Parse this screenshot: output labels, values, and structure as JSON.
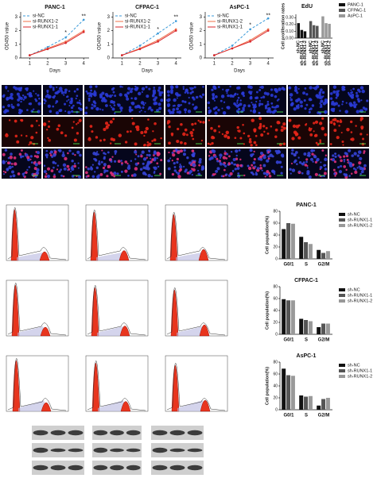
{
  "chart_data": [
    {
      "type": "line",
      "title": "PANC-1",
      "x_label": "Days",
      "y_label": "OD450 value",
      "x": [
        1,
        2,
        3,
        4
      ],
      "xlim": [
        0.5,
        4.3
      ],
      "xticks": [
        1,
        2,
        3,
        4
      ],
      "ylim": [
        0,
        3.2
      ],
      "yticks": [
        0,
        1,
        2,
        3
      ],
      "legend": "upper left",
      "series": [
        {
          "name": "si-NC",
          "color": "#3a9ad9",
          "line_style": "dashed",
          "values": [
            0.2,
            0.8,
            1.5,
            2.8
          ]
        },
        {
          "name": "si-RUNX1-2",
          "color": "#f0704a",
          "line_style": "solid",
          "values": [
            0.2,
            0.7,
            1.2,
            2.0
          ]
        },
        {
          "name": "si-RUNX1-1",
          "color": "#d9262b",
          "line_style": "solid",
          "values": [
            0.2,
            0.65,
            1.1,
            1.9
          ]
        }
      ],
      "annotations": [
        {
          "text": "*",
          "x": 3,
          "y": 1.85
        },
        {
          "text": "**",
          "x": 4,
          "y": 3.05
        }
      ]
    },
    {
      "type": "line",
      "title": "CFPAC-1",
      "x_label": "Days",
      "y_label": "OD450 value",
      "x": [
        1,
        2,
        3,
        4
      ],
      "xlim": [
        0.5,
        4.3
      ],
      "xticks": [
        1,
        2,
        3,
        4
      ],
      "ylim": [
        0,
        3.2
      ],
      "yticks": [
        0,
        1,
        2,
        3
      ],
      "legend": "upper left",
      "series": [
        {
          "name": "si-NC",
          "color": "#3a9ad9",
          "line_style": "dashed",
          "values": [
            0.2,
            0.9,
            1.8,
            2.7
          ]
        },
        {
          "name": "si-RUNX1-2",
          "color": "#f0704a",
          "line_style": "solid",
          "values": [
            0.2,
            0.7,
            1.3,
            2.1
          ]
        },
        {
          "name": "si-RUNX1-1",
          "color": "#d9262b",
          "line_style": "solid",
          "values": [
            0.2,
            0.65,
            1.2,
            2.0
          ]
        }
      ],
      "annotations": [
        {
          "text": "*",
          "x": 3,
          "y": 2.1
        },
        {
          "text": "**",
          "x": 4,
          "y": 3.0
        }
      ]
    },
    {
      "type": "line",
      "title": "AsPC-1",
      "x_label": "Days",
      "y_label": "OD450 value",
      "x": [
        1,
        2,
        3,
        4
      ],
      "xlim": [
        0.5,
        4.3
      ],
      "xticks": [
        1,
        2,
        3,
        4
      ],
      "ylim": [
        0,
        3.2
      ],
      "yticks": [
        0,
        1,
        2,
        3
      ],
      "legend": "upper left",
      "series": [
        {
          "name": "si-NC",
          "color": "#3a9ad9",
          "line_style": "dashed",
          "values": [
            0.2,
            0.9,
            2.1,
            2.9
          ]
        },
        {
          "name": "si-RUNX1-2",
          "color": "#f0704a",
          "line_style": "solid",
          "values": [
            0.2,
            0.7,
            1.3,
            2.1
          ]
        },
        {
          "name": "si-RUNX1-1",
          "color": "#d9262b",
          "line_style": "solid",
          "values": [
            0.2,
            0.7,
            1.2,
            2.0
          ]
        }
      ],
      "annotations": [
        {
          "text": "*",
          "x": 3,
          "y": 2.4
        },
        {
          "text": "**",
          "x": 4,
          "y": 3.1
        }
      ]
    },
    {
      "type": "bar",
      "title": "EdU",
      "y_label": "Cell proliferation rates",
      "cluster": "series",
      "legend": "right",
      "categories": [
        "sh-NC",
        "sh-RUNX1-1",
        "sh-RUNX1-2"
      ],
      "ylim": [
        0,
        0.35
      ],
      "yticks": [
        {
          "value": 0,
          "label": "0.00"
        },
        {
          "value": 0.1,
          "label": "0.10"
        },
        {
          "value": 0.2,
          "label": "0.20"
        },
        {
          "value": 0.3,
          "label": "0.30"
        }
      ],
      "series": [
        {
          "name": "PANC-1",
          "color": "#111111",
          "values": [
            0.22,
            0.12,
            0.1
          ]
        },
        {
          "name": "CFPAC-1",
          "color": "#555555",
          "values": [
            0.25,
            0.19,
            0.18
          ]
        },
        {
          "name": "AsPC-1",
          "color": "#999999",
          "values": [
            0.32,
            0.22,
            0.21
          ]
        }
      ]
    },
    {
      "type": "bar",
      "title": "PANC-1",
      "y_label": "Cell population(%)",
      "cluster": "categories",
      "legend": "right",
      "categories": [
        "G0/1",
        "S",
        "G2/M"
      ],
      "ylim": [
        0,
        80
      ],
      "yticks": [
        0,
        20,
        40,
        60,
        80
      ],
      "series": [
        {
          "name": "sh-NC",
          "color": "#111111",
          "values": [
            50,
            37,
            15
          ]
        },
        {
          "name": "sh-RUNX1-1",
          "color": "#555555",
          "values": [
            60,
            28,
            10
          ]
        },
        {
          "name": "sh-RUNX1-2",
          "color": "#999999",
          "values": [
            59,
            25,
            13
          ]
        }
      ]
    },
    {
      "type": "bar",
      "title": "CFPAC-1",
      "y_label": "Cell population(%)",
      "cluster": "categories",
      "legend": "right",
      "categories": [
        "G0/1",
        "S",
        "G2/M"
      ],
      "ylim": [
        0,
        80
      ],
      "yticks": [
        0,
        20,
        40,
        60,
        80
      ],
      "series": [
        {
          "name": "sh-NC",
          "color": "#111111",
          "values": [
            59,
            26,
            12
          ]
        },
        {
          "name": "sh-RUNX1-1",
          "color": "#555555",
          "values": [
            57,
            24,
            18
          ]
        },
        {
          "name": "sh-RUNX1-2",
          "color": "#999999",
          "values": [
            57,
            22,
            18
          ]
        }
      ]
    },
    {
      "type": "bar",
      "title": "AsPC-1",
      "y_label": "Cell population(%)",
      "cluster": "categories",
      "legend": "right",
      "categories": [
        "G0/1",
        "S",
        "G2/M"
      ],
      "ylim": [
        0,
        80
      ],
      "yticks": [
        0,
        20,
        40,
        60,
        80
      ],
      "series": [
        {
          "name": "sh-NC",
          "color": "#111111",
          "values": [
            69,
            24,
            7
          ]
        },
        {
          "name": "sh-RUNX1-1",
          "color": "#555555",
          "values": [
            58,
            22,
            18
          ]
        },
        {
          "name": "sh-RUNX1-2",
          "color": "#999999",
          "values": [
            57,
            23,
            20
          ]
        }
      ]
    }
  ]
}
